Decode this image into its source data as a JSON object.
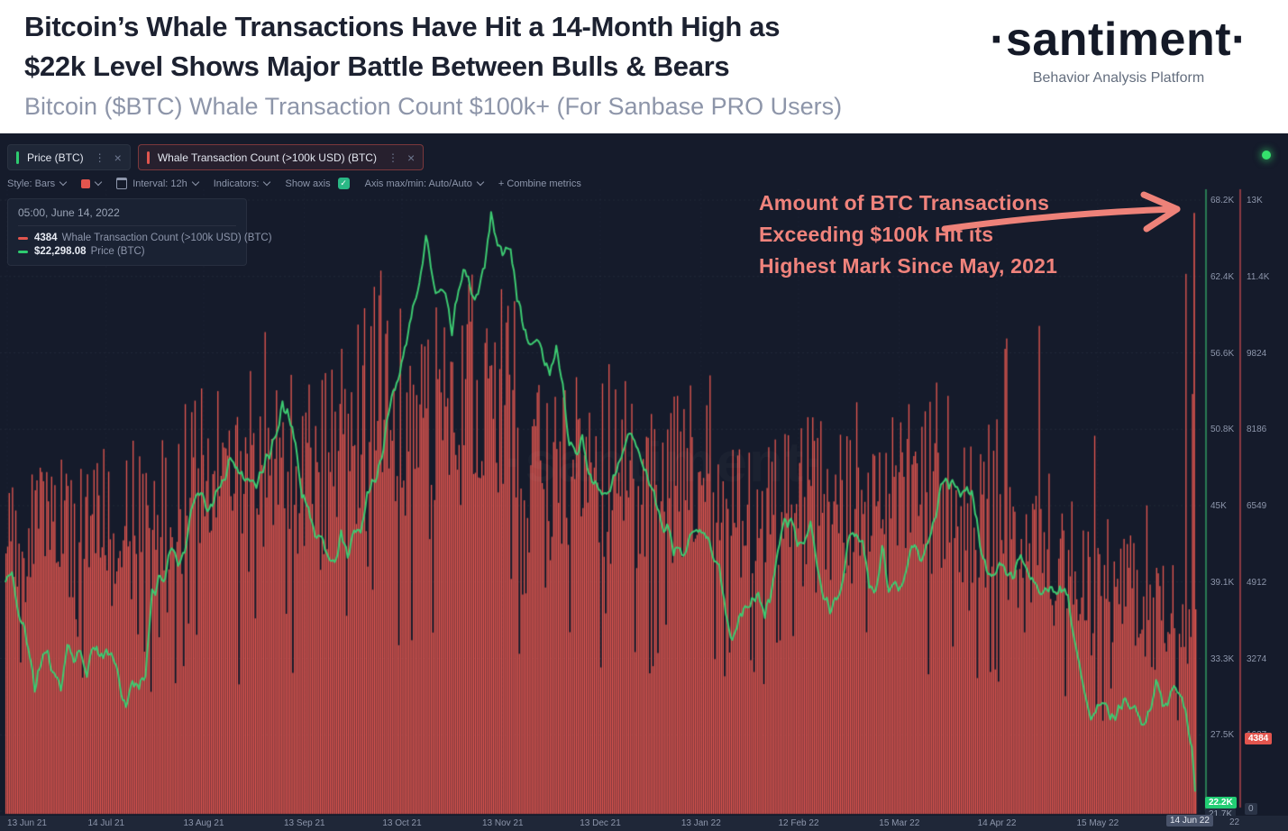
{
  "header": {
    "title_line1": "Bitcoin’s Whale Transactions Have Hit a 14-Month High as",
    "title_line2": "$22k Level Shows Major Battle Between Bulls & Bears",
    "subtitle": "Bitcoin ($BTC) Whale Transaction Count $100k+ (For Sanbase PRO Users)",
    "logo": "·santiment·",
    "logo_tagline": "Behavior Analysis Platform"
  },
  "tabs": [
    {
      "label": "Price (BTC)",
      "marker_color": "#2ecb70",
      "kebab": "⋮",
      "close": "×"
    },
    {
      "label": "Whale Transaction Count (>100k USD) (BTC)",
      "marker_color": "#e2554e",
      "kebab": "⋮",
      "close": "×"
    }
  ],
  "toolbar": {
    "style_label": "Style: Bars",
    "swatch_color": "#e2554e",
    "interval_label": "Interval: 12h",
    "indicators_label": "Indicators:",
    "show_axis_label": "Show axis",
    "show_axis_check": "✓",
    "axis_maxmin_label": "Axis max/min: Auto/Auto",
    "combine_label": "+ Combine metrics"
  },
  "tooltip": {
    "datetime": "05:00, June 14, 2022",
    "rows": [
      {
        "value": "4384",
        "label": "Whale Transaction Count (>100k USD) (BTC)",
        "color": "#e2554e"
      },
      {
        "value": "$22,298.08",
        "label": "Price (BTC)",
        "color": "#2ecb70"
      }
    ]
  },
  "annotation": {
    "line1": "Amount of BTC Transactions",
    "line2": "Exceeding $100k Hit its",
    "line3": "Highest Mark Since May, 2021",
    "color": "#f0837c"
  },
  "badges": {
    "price_current": "22.2K",
    "price_min": "21.7K",
    "whale_current": "4384",
    "whale_zero": "0",
    "date_current": "14 Jun 22",
    "date_partial": "22"
  },
  "watermark": "·santiment·",
  "chart_data": {
    "type": [
      "bar",
      "line"
    ],
    "bar_interval_hours": 12,
    "days_total": 366,
    "x_axis": {
      "labels": [
        {
          "label": "13 Jun 21",
          "day": 0
        },
        {
          "label": "14 Jul 21",
          "day": 31
        },
        {
          "label": "13 Aug 21",
          "day": 61
        },
        {
          "label": "13 Sep 21",
          "day": 92
        },
        {
          "label": "13 Oct 21",
          "day": 122
        },
        {
          "label": "13 Nov 21",
          "day": 153
        },
        {
          "label": "13 Dec 21",
          "day": 183
        },
        {
          "label": "13 Jan 22",
          "day": 214
        },
        {
          "label": "12 Feb 22",
          "day": 244
        },
        {
          "label": "15 Mar 22",
          "day": 275
        },
        {
          "label": "14 Apr 22",
          "day": 305
        },
        {
          "label": "15 May 22",
          "day": 336
        }
      ],
      "current_label": "14 Jun 22",
      "current_day": 366
    },
    "price_axis": {
      "side": "inner-right",
      "color": "#2f9d62",
      "min": 21700,
      "max": 68200,
      "ticks": [
        "68.2K",
        "62.4K",
        "56.6K",
        "50.8K",
        "45K",
        "39.1K",
        "33.3K",
        "27.5K"
      ],
      "min_label": "21.7K"
    },
    "whale_axis": {
      "side": "outer-right",
      "color": "#b2454b",
      "min": 0,
      "max": 13098,
      "ticks": [
        "13K",
        "11.4K",
        "9824",
        "8186",
        "6549",
        "4912",
        "3274",
        "1637",
        "0"
      ]
    },
    "price_series": {
      "name": "Price (BTC)",
      "color": "#3dca71",
      "current_value": 22298.08,
      "points": [
        [
          0,
          39300
        ],
        [
          2,
          40150
        ],
        [
          4,
          37300
        ],
        [
          6,
          35600
        ],
        [
          8,
          32900
        ],
        [
          9,
          31100
        ],
        [
          11,
          33300
        ],
        [
          13,
          33900
        ],
        [
          15,
          32400
        ],
        [
          17,
          31500
        ],
        [
          19,
          34600
        ],
        [
          21,
          33100
        ],
        [
          23,
          34400
        ],
        [
          25,
          32700
        ],
        [
          27,
          34300
        ],
        [
          29,
          33700
        ],
        [
          31,
          34100
        ],
        [
          33,
          33200
        ],
        [
          35,
          31800
        ],
        [
          37,
          29900
        ],
        [
          39,
          31900
        ],
        [
          41,
          31400
        ],
        [
          43,
          32300
        ],
        [
          45,
          38300
        ],
        [
          47,
          39500
        ],
        [
          49,
          40100
        ],
        [
          51,
          42300
        ],
        [
          53,
          40600
        ],
        [
          55,
          41600
        ],
        [
          57,
          44600
        ],
        [
          59,
          46200
        ],
        [
          61,
          45600
        ],
        [
          63,
          44700
        ],
        [
          65,
          46400
        ],
        [
          67,
          47200
        ],
        [
          69,
          48900
        ],
        [
          71,
          48200
        ],
        [
          73,
          47100
        ],
        [
          75,
          46500
        ],
        [
          77,
          46700
        ],
        [
          79,
          48100
        ],
        [
          81,
          49300
        ],
        [
          83,
          50400
        ],
        [
          85,
          52700
        ],
        [
          87,
          51800
        ],
        [
          89,
          50000
        ],
        [
          91,
          46100
        ],
        [
          93,
          44900
        ],
        [
          95,
          43200
        ],
        [
          97,
          42800
        ],
        [
          99,
          41100
        ],
        [
          101,
          40800
        ],
        [
          103,
          42900
        ],
        [
          105,
          41200
        ],
        [
          107,
          43700
        ],
        [
          109,
          43600
        ],
        [
          111,
          45700
        ],
        [
          113,
          47300
        ],
        [
          115,
          48200
        ],
        [
          117,
          51300
        ],
        [
          119,
          54100
        ],
        [
          121,
          55000
        ],
        [
          123,
          57400
        ],
        [
          125,
          60800
        ],
        [
          127,
          61700
        ],
        [
          129,
          66100
        ],
        [
          131,
          62400
        ],
        [
          133,
          61400
        ],
        [
          135,
          60900
        ],
        [
          137,
          58500
        ],
        [
          139,
          61500
        ],
        [
          141,
          63200
        ],
        [
          143,
          61600
        ],
        [
          145,
          61000
        ],
        [
          147,
          63200
        ],
        [
          149,
          67500
        ],
        [
          151,
          64900
        ],
        [
          153,
          64400
        ],
        [
          155,
          65100
        ],
        [
          157,
          60900
        ],
        [
          159,
          58700
        ],
        [
          161,
          57000
        ],
        [
          163,
          58200
        ],
        [
          165,
          56300
        ],
        [
          167,
          54900
        ],
        [
          169,
          57300
        ],
        [
          171,
          53900
        ],
        [
          173,
          50100
        ],
        [
          175,
          49200
        ],
        [
          177,
          50500
        ],
        [
          179,
          47700
        ],
        [
          181,
          46900
        ],
        [
          183,
          46300
        ],
        [
          185,
          46200
        ],
        [
          187,
          47500
        ],
        [
          189,
          48900
        ],
        [
          191,
          50800
        ],
        [
          193,
          50700
        ],
        [
          195,
          48300
        ],
        [
          197,
          47300
        ],
        [
          199,
          46600
        ],
        [
          201,
          43700
        ],
        [
          203,
          43600
        ],
        [
          205,
          41900
        ],
        [
          207,
          41700
        ],
        [
          209,
          41900
        ],
        [
          211,
          42800
        ],
        [
          213,
          43100
        ],
        [
          215,
          43000
        ],
        [
          217,
          41600
        ],
        [
          219,
          40300
        ],
        [
          221,
          36800
        ],
        [
          223,
          35200
        ],
        [
          225,
          36700
        ],
        [
          227,
          37200
        ],
        [
          229,
          37900
        ],
        [
          231,
          38300
        ],
        [
          233,
          36900
        ],
        [
          235,
          38700
        ],
        [
          237,
          41600
        ],
        [
          239,
          43900
        ],
        [
          241,
          44100
        ],
        [
          243,
          42400
        ],
        [
          245,
          42600
        ],
        [
          247,
          43900
        ],
        [
          249,
          40400
        ],
        [
          251,
          38500
        ],
        [
          253,
          37300
        ],
        [
          255,
          38400
        ],
        [
          257,
          39300
        ],
        [
          259,
          43200
        ],
        [
          261,
          42600
        ],
        [
          263,
          42500
        ],
        [
          265,
          39300
        ],
        [
          267,
          38500
        ],
        [
          269,
          41900
        ],
        [
          271,
          39000
        ],
        [
          273,
          38800
        ],
        [
          275,
          39300
        ],
        [
          277,
          41100
        ],
        [
          279,
          41900
        ],
        [
          281,
          41000
        ],
        [
          283,
          42300
        ],
        [
          285,
          44100
        ],
        [
          287,
          46800
        ],
        [
          289,
          47100
        ],
        [
          291,
          47000
        ],
        [
          293,
          45800
        ],
        [
          295,
          46400
        ],
        [
          297,
          45500
        ],
        [
          299,
          42300
        ],
        [
          301,
          40100
        ],
        [
          303,
          39500
        ],
        [
          305,
          41100
        ],
        [
          307,
          40400
        ],
        [
          309,
          39700
        ],
        [
          311,
          41500
        ],
        [
          313,
          40400
        ],
        [
          315,
          39400
        ],
        [
          317,
          38100
        ],
        [
          319,
          39200
        ],
        [
          321,
          38600
        ],
        [
          323,
          38500
        ],
        [
          325,
          39000
        ],
        [
          327,
          36500
        ],
        [
          329,
          34000
        ],
        [
          331,
          31300
        ],
        [
          333,
          28700
        ],
        [
          335,
          29700
        ],
        [
          337,
          30200
        ],
        [
          339,
          28800
        ],
        [
          341,
          29200
        ],
        [
          343,
          30300
        ],
        [
          345,
          29700
        ],
        [
          347,
          29500
        ],
        [
          349,
          28700
        ],
        [
          351,
          29500
        ],
        [
          353,
          31700
        ],
        [
          355,
          29900
        ],
        [
          357,
          30500
        ],
        [
          359,
          31300
        ],
        [
          361,
          30200
        ],
        [
          363,
          28400
        ],
        [
          364,
          26900
        ],
        [
          365,
          23400
        ],
        [
          366,
          22298
        ]
      ]
    },
    "whale_series": {
      "name": "Whale Transaction Count (>100k USD) (BTC)",
      "color": "#e1564f",
      "current_value": 4384,
      "final_spike_value": 12880,
      "week_length_days": 7,
      "weekly_base": [
        6300,
        6600,
        6100,
        5700,
        6000,
        6500,
        6300,
        6100,
        6600,
        7000,
        7200,
        7400,
        7000,
        6900,
        7200,
        7800,
        8800,
        9200,
        8800,
        9000,
        9300,
        8900,
        8400,
        8000,
        8200,
        7600,
        7100,
        7400,
        7000,
        6700,
        6900,
        7200,
        6600,
        6200,
        6400,
        6700,
        6300,
        6500,
        6800,
        6400,
        6600,
        6300,
        5900,
        6100,
        6400,
        5800,
        5400,
        5200,
        5000,
        4700,
        4500,
        4300,
        4200
      ],
      "weekly_peak": [
        8600,
        8200,
        7600,
        7200,
        7800,
        9300,
        8000,
        8600,
        8900,
        9700,
        9400,
        11000,
        9600,
        9200,
        9800,
        10600,
        11900,
        12000,
        11600,
        11800,
        11700,
        11300,
        10700,
        10200,
        10400,
        9700,
        9100,
        9500,
        9200,
        8700,
        10200,
        10300,
        8900,
        8300,
        8600,
        9000,
        8500,
        8800,
        9200,
        8700,
        9000,
        10700,
        8200,
        8400,
        10900,
        10600,
        9400,
        8600,
        8200,
        7700,
        7400,
        8200,
        12880
      ]
    },
    "grid": true,
    "legend_position": "tooltip-top-left"
  }
}
